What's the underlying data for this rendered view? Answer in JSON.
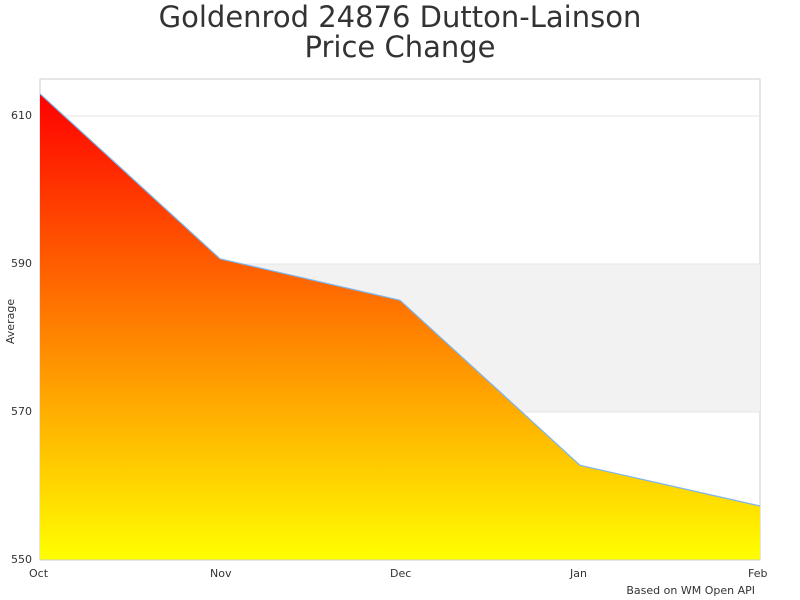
{
  "chart": {
    "title_line1": "Goldenrod 24876 Dutton-Lainson",
    "title_line2": "Price Change",
    "ylabel": "Average",
    "credit": "Based on WM Open API",
    "yticks": [
      "610",
      "590",
      "570",
      "550"
    ],
    "xticks": [
      "Oct",
      "Nov",
      "Dec",
      "Jan",
      "Feb"
    ]
  },
  "chart_data": {
    "type": "area",
    "title": "Goldenrod 24876 Dutton-Lainson Price Change",
    "xlabel": "",
    "ylabel": "Average",
    "categories": [
      "Oct",
      "Nov",
      "Dec",
      "Jan",
      "Feb"
    ],
    "series": [
      {
        "name": "Average",
        "values": [
          613.0,
          590.7,
          585.1,
          562.8,
          557.3
        ]
      }
    ],
    "ylim": [
      550,
      615
    ],
    "yticks": [
      550,
      570,
      590,
      610
    ],
    "grid": true,
    "plot_bands": [
      {
        "from": 570,
        "to": 590,
        "color": "#f2f2f2"
      }
    ],
    "fill_gradient": {
      "top": "#ff0000",
      "bottom": "#ffff00"
    },
    "line_color": "#7cb5ec",
    "legend": "none",
    "credit": "Based on WM Open API"
  }
}
